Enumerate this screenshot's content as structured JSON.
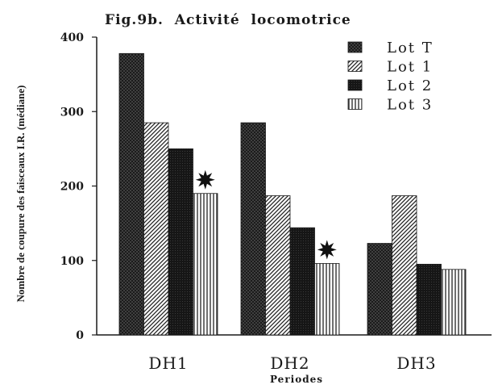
{
  "chart_data": {
    "type": "bar",
    "title": "Fig.9b.  Activité  locomotrice",
    "xlabel": "Periodes",
    "ylabel": "Nombre de coupure des faisceaux I.R. (médiane)",
    "ylim": [
      0,
      400
    ],
    "yticks": [
      0,
      100,
      200,
      300,
      400
    ],
    "ytick_labels": [
      "0",
      "100",
      "200",
      "300",
      "400"
    ],
    "categories": [
      "DH1",
      "DH2",
      "DH3"
    ],
    "legend_position": "top-right",
    "grid": false,
    "series": [
      {
        "name": "Lot  T",
        "pattern": "crosshatch",
        "values": [
          378,
          285,
          123
        ]
      },
      {
        "name": "Lot  1",
        "pattern": "diagonal",
        "values": [
          285,
          187,
          187
        ]
      },
      {
        "name": "Lot  2",
        "pattern": "dark",
        "values": [
          250,
          144,
          95
        ]
      },
      {
        "name": "Lot  3",
        "pattern": "vertical",
        "values": [
          190,
          96,
          88
        ]
      }
    ],
    "annotations": [
      {
        "category": "DH1",
        "series": "Lot  3",
        "marker": "star"
      },
      {
        "category": "DH2",
        "series": "Lot  3",
        "marker": "star"
      }
    ]
  }
}
